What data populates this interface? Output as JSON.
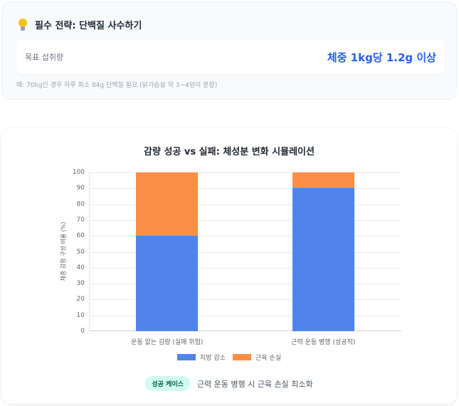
{
  "tip": {
    "icon": "lightbulb-icon",
    "title": "필수 전략: 단백질 사수하기",
    "target_label": "목표 섭취량",
    "target_value": "체중 1kg당 1.2g 이상",
    "note": "예: 70kg인 경우 하루 최소 84g 단백질 필요 (닭가슴살 약 3~4덩이 분량)"
  },
  "chart": {
    "title": "감량 성공 vs 실패: 체성분 변화 시뮬레이션",
    "ylabel": "체중 감량 구성 비율 (%)",
    "yticks": [
      "100",
      "90",
      "80",
      "70",
      "60",
      "50",
      "40",
      "30",
      "20",
      "10",
      "0"
    ],
    "categories": [
      "운동 없는 감량 (실패 위험)",
      "근력 운동 병행 (성공적)"
    ],
    "legend": [
      "지방 감소",
      "근육 손실"
    ],
    "colors": {
      "fat": "#5183ef",
      "muscle": "#fb8f45"
    }
  },
  "footer": {
    "badge": "성공 케이스",
    "text": "근력 운동 병행 시 근육 손실 최소화"
  },
  "chart_data": {
    "type": "bar",
    "stacked": true,
    "title": "감량 성공 vs 실패: 체성분 변화 시뮬레이션",
    "xlabel": "",
    "ylabel": "체중 감량 구성 비율 (%)",
    "categories": [
      "운동 없는 감량 (실패 위험)",
      "근력 운동 병행 (성공적)"
    ],
    "series": [
      {
        "name": "지방 감소",
        "values": [
          60,
          90
        ],
        "color": "#5183ef"
      },
      {
        "name": "근육 손실",
        "values": [
          40,
          10
        ],
        "color": "#fb8f45"
      }
    ],
    "ylim": [
      0,
      100
    ],
    "grid": true,
    "legend_position": "bottom"
  }
}
